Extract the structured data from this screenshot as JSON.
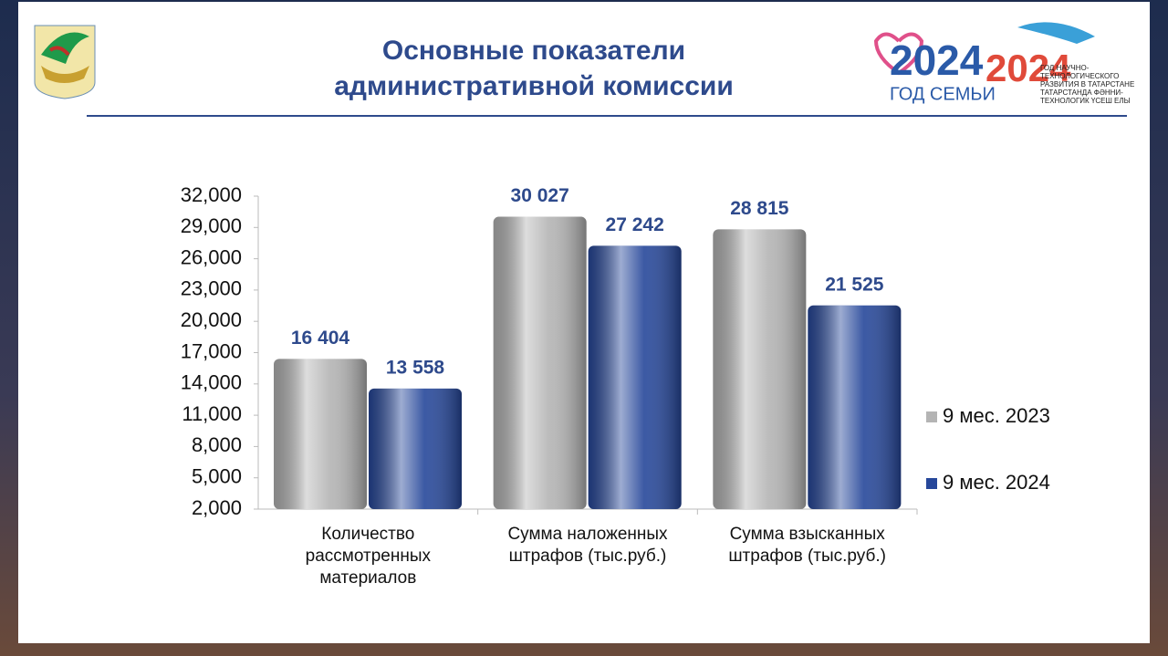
{
  "chart_data": {
    "type": "bar",
    "title": "Основные показатели административной комиссии",
    "categories": [
      "Количество рассмотренных материалов",
      "Сумма наложенных штрафов (тыс.руб.)",
      "Сумма взысканных штрафов (тыс.руб.)"
    ],
    "series": [
      {
        "name": "9 мес. 2023",
        "color": "#b4b4b4",
        "values": [
          16404,
          30027,
          28815
        ],
        "value_labels": [
          "16 404",
          "30 027",
          "28 815"
        ]
      },
      {
        "name": "9 мес. 2024",
        "color": "#26479a",
        "values": [
          13558,
          27242,
          21525
        ],
        "value_labels": [
          "13 558",
          "27 242",
          "21 525"
        ]
      }
    ],
    "ylim": [
      2000,
      32000
    ],
    "yticks": [
      {
        "value": 2000,
        "label": "2,000"
      },
      {
        "value": 5000,
        "label": "5,000"
      },
      {
        "value": 8000,
        "label": "8,000"
      },
      {
        "value": 11000,
        "label": "11,000"
      },
      {
        "value": 14000,
        "label": "14,000"
      },
      {
        "value": 17000,
        "label": "17,000"
      },
      {
        "value": 20000,
        "label": "20,000"
      },
      {
        "value": 23000,
        "label": "23,000"
      },
      {
        "value": 26000,
        "label": "26,000"
      },
      {
        "value": 29000,
        "label": "29,000"
      },
      {
        "value": 32000,
        "label": "32,000"
      }
    ],
    "grid": false,
    "legend": "right"
  },
  "logos": {
    "family_year": "2024",
    "family_caption": "ГОД СЕМЬИ",
    "science_year": "2024",
    "science_caption": "ГОД НАУЧНО-ТЕХНОЛОГИЧЕСКОГО РАЗВИТИЯ В ТАТАРСТАНЕ",
    "science_caption_tat": "ТАТАРСТАНДА ФӘННИ-ТЕХНОЛОГИК ҮСЕШ ЕЛЫ"
  }
}
